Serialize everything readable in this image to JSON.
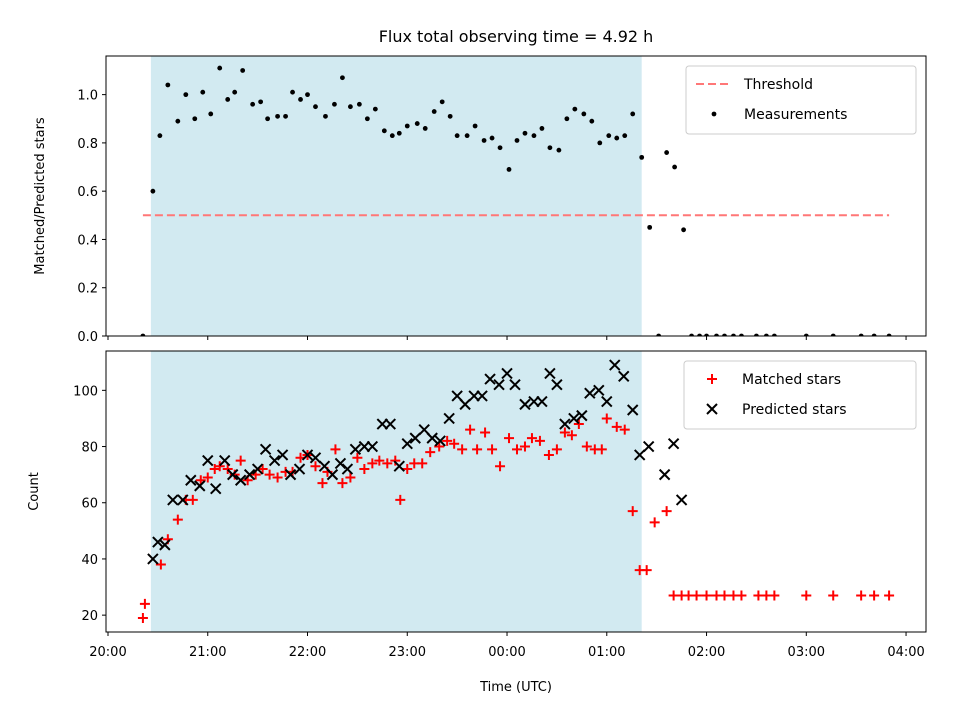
{
  "chart_data": {
    "title": "Flux total observing time = 4.92 h",
    "xlabel": "Time (UTC)",
    "x_unit": "hours",
    "x_ticks": [
      {
        "v": 20,
        "label": "20:00"
      },
      {
        "v": 21,
        "label": "21:00"
      },
      {
        "v": 22,
        "label": "22:00"
      },
      {
        "v": 23,
        "label": "23:00"
      },
      {
        "v": 24,
        "label": "00:00"
      },
      {
        "v": 25,
        "label": "01:00"
      },
      {
        "v": 26,
        "label": "02:00"
      },
      {
        "v": 27,
        "label": "03:00"
      },
      {
        "v": 28,
        "label": "04:00"
      }
    ],
    "xlim": [
      19.98,
      28.2
    ],
    "shaded_span": {
      "x0": 20.43,
      "x1": 25.35,
      "color": "#add8e6"
    },
    "panels": [
      {
        "id": "ratio",
        "type": "scatter",
        "ylabel": "Matched/Predicted stars",
        "ylim": [
          0,
          1.16
        ],
        "y_ticks": [
          0,
          0.2,
          0.4,
          0.6,
          0.8,
          1.0
        ],
        "y_tick_labels": [
          "0.0",
          "0.2",
          "0.4",
          "0.6",
          "0.8",
          "1.0"
        ],
        "legend_position": "top-right",
        "threshold": {
          "name": "Threshold",
          "y": 0.5,
          "x0": 20.35,
          "x1": 27.83,
          "color": "#ff7777"
        },
        "series": [
          {
            "name": "Measurements",
            "marker": "dot",
            "color": "#000000",
            "x": [
              20.35,
              20.45,
              20.52,
              20.6,
              20.7,
              20.78,
              20.87,
              20.95,
              21.03,
              21.12,
              21.2,
              21.27,
              21.35,
              21.45,
              21.53,
              21.6,
              21.7,
              21.78,
              21.85,
              21.93,
              22.0,
              22.08,
              22.18,
              22.27,
              22.35,
              22.43,
              22.52,
              22.6,
              22.68,
              22.77,
              22.85,
              22.92,
              23.0,
              23.1,
              23.18,
              23.27,
              23.35,
              23.43,
              23.5,
              23.6,
              23.68,
              23.77,
              23.85,
              23.93,
              24.02,
              24.1,
              24.18,
              24.27,
              24.35,
              24.43,
              24.52,
              24.6,
              24.68,
              24.77,
              24.85,
              24.93,
              25.02,
              25.1,
              25.18,
              25.26,
              25.35,
              25.43,
              25.52,
              25.6,
              25.68,
              25.77,
              25.85,
              25.93,
              26.0,
              26.1,
              26.18,
              26.27,
              26.35,
              26.5,
              26.6,
              26.68,
              27.0,
              27.27,
              27.55,
              27.68,
              27.83
            ],
            "y": [
              0.0,
              0.6,
              0.83,
              1.04,
              0.89,
              1.0,
              0.9,
              1.01,
              0.92,
              1.11,
              0.98,
              1.01,
              1.1,
              0.96,
              0.97,
              0.9,
              0.91,
              0.91,
              1.01,
              0.98,
              1.0,
              0.95,
              0.91,
              0.96,
              1.07,
              0.95,
              0.96,
              0.9,
              0.94,
              0.85,
              0.83,
              0.84,
              0.87,
              0.88,
              0.86,
              0.93,
              0.97,
              0.91,
              0.83,
              0.83,
              0.87,
              0.81,
              0.82,
              0.78,
              0.69,
              0.81,
              0.84,
              0.83,
              0.86,
              0.78,
              0.77,
              0.9,
              0.94,
              0.92,
              0.89,
              0.8,
              0.83,
              0.82,
              0.83,
              0.92,
              0.74,
              0.45,
              0.0,
              0.76,
              0.7,
              0.44,
              0.0,
              0.0,
              0.0,
              0.0,
              0.0,
              0.0,
              0.0,
              0.0,
              0.0,
              0.0,
              0.0,
              0.0,
              0.0,
              0.0,
              0.0
            ]
          }
        ]
      },
      {
        "id": "count",
        "type": "scatter",
        "ylabel": "Count",
        "ylim": [
          14,
          114
        ],
        "y_ticks": [
          20,
          40,
          60,
          80,
          100
        ],
        "y_tick_labels": [
          "20",
          "40",
          "60",
          "80",
          "100"
        ],
        "legend_position": "top-right",
        "series": [
          {
            "name": "Matched stars",
            "marker": "plus",
            "color": "#ff0000",
            "x": [
              20.35,
              20.37,
              20.53,
              20.6,
              20.7,
              20.78,
              20.85,
              20.93,
              21.0,
              21.07,
              21.12,
              21.2,
              21.27,
              21.33,
              21.4,
              21.48,
              21.55,
              21.62,
              21.7,
              21.78,
              21.85,
              21.93,
              22.0,
              22.08,
              22.15,
              22.2,
              22.28,
              22.35,
              22.43,
              22.5,
              22.57,
              22.65,
              22.72,
              22.8,
              22.88,
              22.93,
              23.0,
              23.07,
              23.15,
              23.23,
              23.32,
              23.4,
              23.47,
              23.55,
              23.63,
              23.7,
              23.78,
              23.85,
              23.93,
              24.02,
              24.1,
              24.18,
              24.25,
              24.33,
              24.42,
              24.5,
              24.58,
              24.65,
              24.72,
              24.8,
              24.88,
              24.95,
              25.0,
              25.1,
              25.18,
              25.26,
              25.33,
              25.4,
              25.48,
              25.6,
              25.67,
              25.75,
              25.82,
              25.9,
              26.0,
              26.1,
              26.18,
              26.27,
              26.35,
              26.52,
              26.6,
              26.68,
              27.0,
              27.27,
              27.55,
              27.68,
              27.83
            ],
            "y": [
              19,
              24,
              38,
              47,
              54,
              61,
              61,
              68,
              69,
              72,
              73,
              72,
              70,
              75,
              68,
              70,
              72,
              70,
              69,
              71,
              71,
              76,
              77,
              73,
              67,
              71,
              79,
              67,
              69,
              76,
              72,
              74,
              75,
              74,
              75,
              61,
              72,
              74,
              74,
              78,
              80,
              82,
              81,
              79,
              86,
              79,
              85,
              79,
              73,
              83,
              79,
              80,
              83,
              82,
              77,
              79,
              85,
              84,
              88,
              80,
              79,
              79,
              90,
              87,
              86,
              57,
              36,
              36,
              53,
              57,
              27,
              27,
              27,
              27,
              27,
              27,
              27,
              27,
              27,
              27,
              27,
              27,
              27,
              27,
              27,
              27,
              27
            ]
          },
          {
            "name": "Predicted stars",
            "marker": "x",
            "color": "#000000",
            "x": [
              20.45,
              20.5,
              20.57,
              20.65,
              20.75,
              20.83,
              20.92,
              21.0,
              21.08,
              21.17,
              21.25,
              21.33,
              21.42,
              21.5,
              21.58,
              21.67,
              21.75,
              21.83,
              21.92,
              22.0,
              22.08,
              22.17,
              22.25,
              22.33,
              22.4,
              22.48,
              22.57,
              22.65,
              22.75,
              22.83,
              22.92,
              23.0,
              23.08,
              23.17,
              23.25,
              23.33,
              23.42,
              23.5,
              23.58,
              23.67,
              23.75,
              23.83,
              23.92,
              24.0,
              24.08,
              24.18,
              24.27,
              24.35,
              24.43,
              24.5,
              24.58,
              24.67,
              24.75,
              24.83,
              24.92,
              25.0,
              25.08,
              25.17,
              25.26,
              25.33,
              25.42,
              25.58,
              25.67,
              25.75
            ],
            "y": [
              40,
              46,
              45,
              61,
              61,
              68,
              66,
              75,
              65,
              75,
              70,
              68,
              70,
              72,
              79,
              75,
              77,
              70,
              72,
              77,
              76,
              73,
              70,
              74,
              72,
              79,
              80,
              80,
              88,
              88,
              73,
              81,
              83,
              86,
              83,
              82,
              90,
              98,
              95,
              98,
              98,
              104,
              102,
              106,
              102,
              95,
              96,
              96,
              106,
              102,
              88,
              90,
              91,
              99,
              100,
              96,
              109,
              105,
              93,
              77,
              80,
              70,
              81,
              61
            ]
          }
        ]
      }
    ]
  }
}
